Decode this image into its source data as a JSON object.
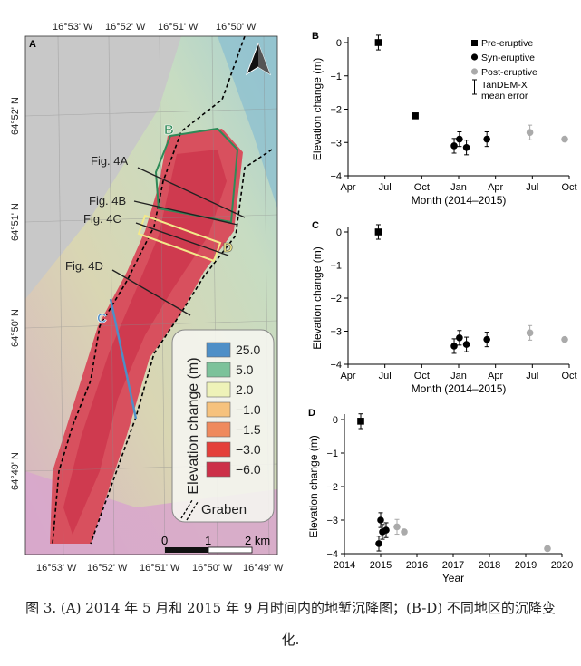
{
  "map": {
    "panel_label": "A",
    "lon_labels": [
      "16°53' W",
      "16°52' W",
      "16°51' W",
      "16°50' W"
    ],
    "lon_labels_bottom": [
      "16°53' W",
      "16°52' W",
      "16°51' W",
      "16°50' W",
      "16°49' W"
    ],
    "lat_labels": [
      "64°52' N",
      "64°51' N",
      "64°50' N",
      "64°49' N"
    ],
    "fig_labels": [
      "Fig. 4A",
      "Fig. 4B",
      "Fig. 4C",
      "Fig. 4D"
    ],
    "region_labels": {
      "B": "B",
      "C": "C",
      "D": "D"
    },
    "legend": {
      "title": "Elevation change (m)",
      "items": [
        {
          "label": "25.0",
          "color": "#4e8fc7"
        },
        {
          "label": "5.0",
          "color": "#7cc29a"
        },
        {
          "label": "2.0",
          "color": "#eef2b8"
        },
        {
          "label": "−1.0",
          "color": "#f6c27d"
        },
        {
          "label": "−1.5",
          "color": "#ef8a5d"
        },
        {
          "label": "−3.0",
          "color": "#e4403a"
        },
        {
          "label": "−6.0",
          "color": "#cc3048"
        }
      ],
      "graben_label": "Graben"
    },
    "scale": {
      "labels": [
        "0",
        "1",
        "2 km"
      ]
    }
  },
  "charts": {
    "legend_items": [
      "Pre-eruptive",
      "Syn-eruptive",
      "Post-eruptive",
      "TanDEM-X",
      "mean error"
    ],
    "colors": {
      "pre": "#000000",
      "syn": "#000000",
      "post": "#aaaaaa"
    }
  },
  "chart_data": [
    {
      "panel": "B",
      "type": "scatter",
      "xlabel": "Month (2014–2015)",
      "ylabel": "Elevation change (m)",
      "xticks": [
        "Apr",
        "Jul",
        "Oct",
        "Jan",
        "Apr",
        "Jul",
        "Oct"
      ],
      "ylim": [
        -4,
        0
      ],
      "yticks": [
        "0",
        "−1",
        "−2",
        "−3",
        "−4"
      ],
      "series": [
        {
          "name": "Pre-eruptive",
          "points": [
            {
              "x": "2014-06-15",
              "y": 0.0,
              "err": 0.22
            }
          ]
        },
        {
          "name": "Syn-eruptive",
          "points": [
            {
              "x": "2014-12-20",
              "y": -3.1,
              "err": 0.22
            },
            {
              "x": "2015-01-03",
              "y": -2.9,
              "err": 0.22
            },
            {
              "x": "2015-01-20",
              "y": -3.15,
              "err": 0.22
            },
            {
              "x": "2015-03-10",
              "y": -2.9,
              "err": 0.22
            }
          ]
        },
        {
          "name": "Post-eruptive",
          "points": [
            {
              "x": "2015-06-25",
              "y": -2.7,
              "err": 0.22
            },
            {
              "x": "2015-09-20",
              "y": -2.9,
              "err": null
            }
          ]
        },
        {
          "name": "unlabeled",
          "marker": "square",
          "points": [
            {
              "x": "2014-09-15",
              "y": -2.2,
              "err": null
            }
          ]
        }
      ]
    },
    {
      "panel": "C",
      "type": "scatter",
      "xlabel": "Month (2014–2015)",
      "ylabel": "Elevation change (m)",
      "xticks": [
        "Apr",
        "Jul",
        "Oct",
        "Jan",
        "Apr",
        "Jul",
        "Oct"
      ],
      "ylim": [
        -4,
        0
      ],
      "yticks": [
        "0",
        "−1",
        "−2",
        "−3",
        "−4"
      ],
      "series": [
        {
          "name": "Pre-eruptive",
          "points": [
            {
              "x": "2014-06-15",
              "y": 0.0,
              "err": 0.22
            }
          ]
        },
        {
          "name": "Syn-eruptive",
          "points": [
            {
              "x": "2014-12-20",
              "y": -3.45,
              "err": 0.22
            },
            {
              "x": "2015-01-03",
              "y": -3.2,
              "err": 0.22
            },
            {
              "x": "2015-01-20",
              "y": -3.4,
              "err": 0.22
            },
            {
              "x": "2015-03-10",
              "y": -3.25,
              "err": 0.22
            }
          ]
        },
        {
          "name": "Post-eruptive",
          "points": [
            {
              "x": "2015-06-25",
              "y": -3.05,
              "err": 0.22
            },
            {
              "x": "2015-09-20",
              "y": -3.25,
              "err": null
            }
          ]
        }
      ]
    },
    {
      "panel": "D",
      "type": "scatter",
      "xlabel": "Year",
      "ylabel": "Elevation change (m)",
      "xticks": [
        "2014",
        "2015",
        "2016",
        "2017",
        "2018",
        "2019",
        "2020"
      ],
      "ylim": [
        -4,
        0
      ],
      "yticks": [
        "0",
        "−1",
        "−2",
        "−3",
        "−4"
      ],
      "series": [
        {
          "name": "Pre-eruptive",
          "marker": "square",
          "points": [
            {
              "x": 2014.45,
              "y": -0.05,
              "err": 0.22
            }
          ]
        },
        {
          "name": "Syn-eruptive",
          "points": [
            {
              "x": 2014.95,
              "y": -3.7,
              "err": 0.22
            },
            {
              "x": 2015.0,
              "y": -3.0,
              "err": 0.22
            },
            {
              "x": 2015.05,
              "y": -3.35,
              "err": 0.22
            },
            {
              "x": 2015.15,
              "y": -3.3,
              "err": 0.22
            }
          ]
        },
        {
          "name": "Post-eruptive",
          "points": [
            {
              "x": 2015.45,
              "y": -3.2,
              "err": 0.22
            },
            {
              "x": 2015.65,
              "y": -3.35,
              "err": null
            },
            {
              "x": 2019.6,
              "y": -3.85,
              "err": null
            }
          ]
        }
      ]
    }
  ],
  "caption": {
    "line1": "图 3. (A) 2014 年 5 月和 2015 年 9 月时间内的地堑沉降图；(B-D) 不同地区的沉降变",
    "line2": "化."
  }
}
